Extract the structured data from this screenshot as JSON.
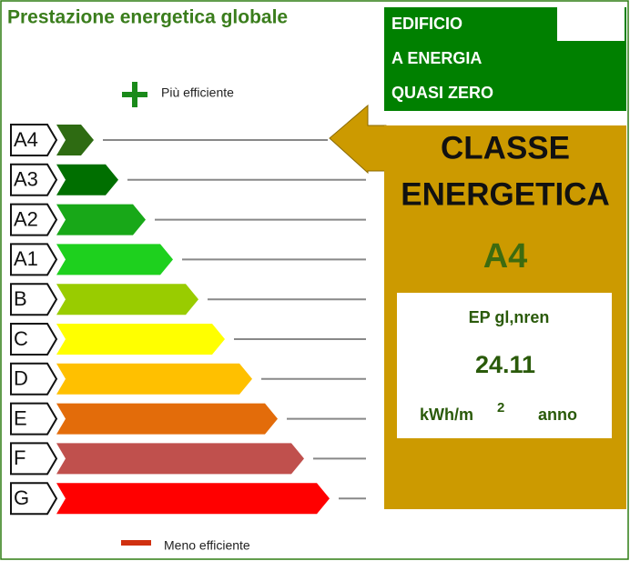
{
  "title": "Prestazione energetica globale",
  "more_efficient": "Più efficiente",
  "less_efficient": "Meno efficiente",
  "classes": [
    "A4",
    "A3",
    "A2",
    "A1",
    "B",
    "C",
    "D",
    "E",
    "F",
    "G"
  ],
  "nzeb": [
    "EDIFICIO",
    "A ENERGIA",
    "QUASI ZERO"
  ],
  "class_heading": [
    "CLASSE",
    "ENERGETICA"
  ],
  "current_class": "A4",
  "ep": {
    "label": "EP gl,nren",
    "value": 24.11,
    "unit": "kWh/m",
    "unit_sup": "2",
    "unit_suffix": "anno"
  }
}
